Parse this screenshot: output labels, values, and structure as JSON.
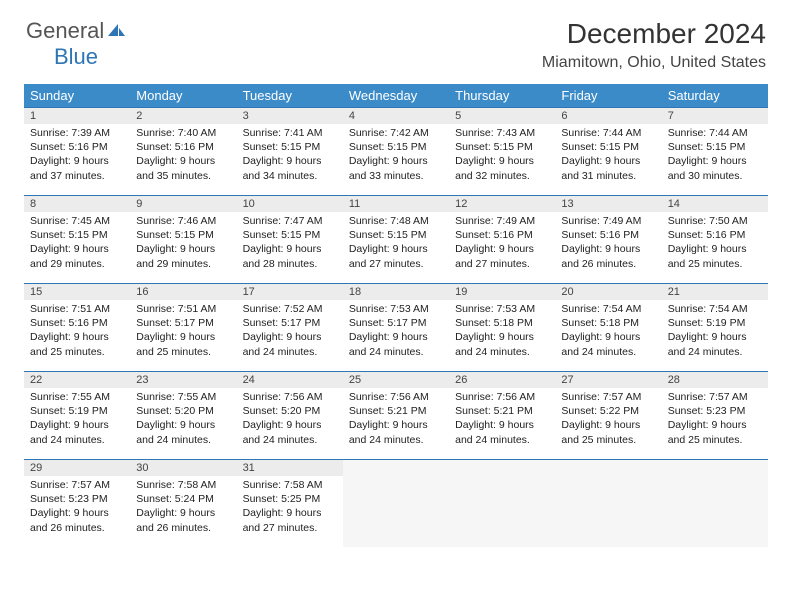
{
  "logo": {
    "part1": "General",
    "part2": "Blue"
  },
  "title": "December 2024",
  "location": "Miamitown, Ohio, United States",
  "colors": {
    "header_bg": "#3b8bc9",
    "accent": "#2e75b6",
    "daynum_bg": "#ececec",
    "empty_bg": "#f6f6f6",
    "text": "#222222"
  },
  "day_headers": [
    "Sunday",
    "Monday",
    "Tuesday",
    "Wednesday",
    "Thursday",
    "Friday",
    "Saturday"
  ],
  "weeks": [
    [
      {
        "n": "1",
        "sr": "7:39 AM",
        "ss": "5:16 PM",
        "dl": "9 hours and 37 minutes."
      },
      {
        "n": "2",
        "sr": "7:40 AM",
        "ss": "5:16 PM",
        "dl": "9 hours and 35 minutes."
      },
      {
        "n": "3",
        "sr": "7:41 AM",
        "ss": "5:15 PM",
        "dl": "9 hours and 34 minutes."
      },
      {
        "n": "4",
        "sr": "7:42 AM",
        "ss": "5:15 PM",
        "dl": "9 hours and 33 minutes."
      },
      {
        "n": "5",
        "sr": "7:43 AM",
        "ss": "5:15 PM",
        "dl": "9 hours and 32 minutes."
      },
      {
        "n": "6",
        "sr": "7:44 AM",
        "ss": "5:15 PM",
        "dl": "9 hours and 31 minutes."
      },
      {
        "n": "7",
        "sr": "7:44 AM",
        "ss": "5:15 PM",
        "dl": "9 hours and 30 minutes."
      }
    ],
    [
      {
        "n": "8",
        "sr": "7:45 AM",
        "ss": "5:15 PM",
        "dl": "9 hours and 29 minutes."
      },
      {
        "n": "9",
        "sr": "7:46 AM",
        "ss": "5:15 PM",
        "dl": "9 hours and 29 minutes."
      },
      {
        "n": "10",
        "sr": "7:47 AM",
        "ss": "5:15 PM",
        "dl": "9 hours and 28 minutes."
      },
      {
        "n": "11",
        "sr": "7:48 AM",
        "ss": "5:15 PM",
        "dl": "9 hours and 27 minutes."
      },
      {
        "n": "12",
        "sr": "7:49 AM",
        "ss": "5:16 PM",
        "dl": "9 hours and 27 minutes."
      },
      {
        "n": "13",
        "sr": "7:49 AM",
        "ss": "5:16 PM",
        "dl": "9 hours and 26 minutes."
      },
      {
        "n": "14",
        "sr": "7:50 AM",
        "ss": "5:16 PM",
        "dl": "9 hours and 25 minutes."
      }
    ],
    [
      {
        "n": "15",
        "sr": "7:51 AM",
        "ss": "5:16 PM",
        "dl": "9 hours and 25 minutes."
      },
      {
        "n": "16",
        "sr": "7:51 AM",
        "ss": "5:17 PM",
        "dl": "9 hours and 25 minutes."
      },
      {
        "n": "17",
        "sr": "7:52 AM",
        "ss": "5:17 PM",
        "dl": "9 hours and 24 minutes."
      },
      {
        "n": "18",
        "sr": "7:53 AM",
        "ss": "5:17 PM",
        "dl": "9 hours and 24 minutes."
      },
      {
        "n": "19",
        "sr": "7:53 AM",
        "ss": "5:18 PM",
        "dl": "9 hours and 24 minutes."
      },
      {
        "n": "20",
        "sr": "7:54 AM",
        "ss": "5:18 PM",
        "dl": "9 hours and 24 minutes."
      },
      {
        "n": "21",
        "sr": "7:54 AM",
        "ss": "5:19 PM",
        "dl": "9 hours and 24 minutes."
      }
    ],
    [
      {
        "n": "22",
        "sr": "7:55 AM",
        "ss": "5:19 PM",
        "dl": "9 hours and 24 minutes."
      },
      {
        "n": "23",
        "sr": "7:55 AM",
        "ss": "5:20 PM",
        "dl": "9 hours and 24 minutes."
      },
      {
        "n": "24",
        "sr": "7:56 AM",
        "ss": "5:20 PM",
        "dl": "9 hours and 24 minutes."
      },
      {
        "n": "25",
        "sr": "7:56 AM",
        "ss": "5:21 PM",
        "dl": "9 hours and 24 minutes."
      },
      {
        "n": "26",
        "sr": "7:56 AM",
        "ss": "5:21 PM",
        "dl": "9 hours and 24 minutes."
      },
      {
        "n": "27",
        "sr": "7:57 AM",
        "ss": "5:22 PM",
        "dl": "9 hours and 25 minutes."
      },
      {
        "n": "28",
        "sr": "7:57 AM",
        "ss": "5:23 PM",
        "dl": "9 hours and 25 minutes."
      }
    ],
    [
      {
        "n": "29",
        "sr": "7:57 AM",
        "ss": "5:23 PM",
        "dl": "9 hours and 26 minutes."
      },
      {
        "n": "30",
        "sr": "7:58 AM",
        "ss": "5:24 PM",
        "dl": "9 hours and 26 minutes."
      },
      {
        "n": "31",
        "sr": "7:58 AM",
        "ss": "5:25 PM",
        "dl": "9 hours and 27 minutes."
      },
      null,
      null,
      null,
      null
    ]
  ],
  "labels": {
    "sunrise": "Sunrise: ",
    "sunset": "Sunset: ",
    "daylight": "Daylight: "
  }
}
